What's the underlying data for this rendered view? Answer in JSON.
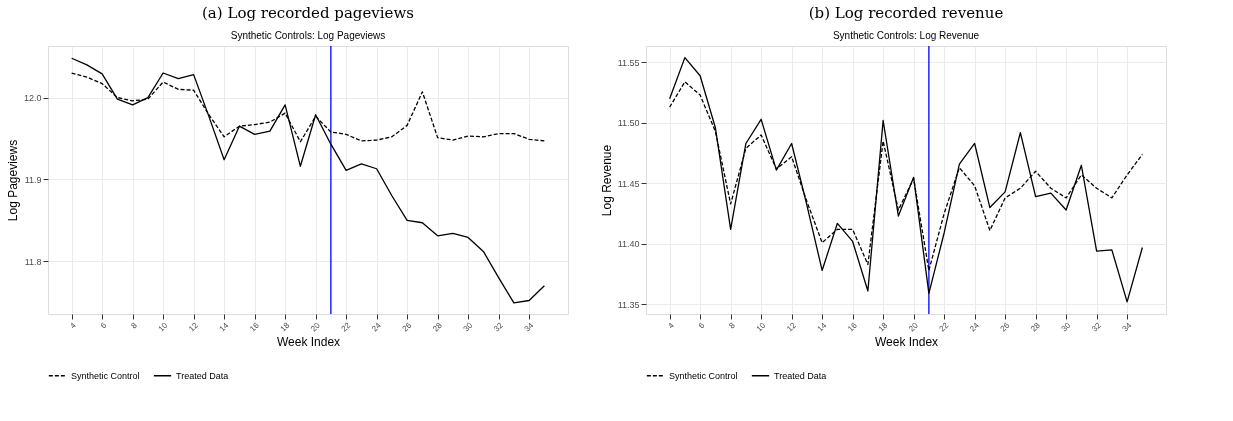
{
  "chart_data": [
    {
      "type": "line",
      "title": "(a) Log recorded pageviews",
      "subtitle": "Synthetic Controls: Log Pageviews",
      "xlabel": "Week Index",
      "ylabel": "Log Pageviews",
      "x": [
        4,
        5,
        6,
        7,
        8,
        9,
        10,
        11,
        12,
        13,
        14,
        15,
        16,
        17,
        18,
        19,
        20,
        21,
        22,
        23,
        24,
        25,
        26,
        27,
        28,
        29,
        30,
        31,
        32,
        33,
        34,
        35
      ],
      "series": [
        {
          "name": "Synthetic Control",
          "color": "#000000",
          "line_style": "dashed",
          "values": [
            12.03,
            12.025,
            12.017,
            12.0,
            11.996,
            11.998,
            12.019,
            12.01,
            12.009,
            11.979,
            11.952,
            11.965,
            11.967,
            11.97,
            11.981,
            11.946,
            11.977,
            11.958,
            11.955,
            11.947,
            11.948,
            11.952,
            11.966,
            12.007,
            11.951,
            11.948,
            11.953,
            11.952,
            11.956,
            11.956,
            11.949,
            11.947
          ]
        },
        {
          "name": "Treated Data",
          "color": "#000000",
          "line_style": "solid",
          "values": [
            12.048,
            12.04,
            12.029,
            11.998,
            11.991,
            12.0,
            12.03,
            12.023,
            12.028,
            11.977,
            11.924,
            11.965,
            11.955,
            11.959,
            11.991,
            11.916,
            11.979,
            11.943,
            11.911,
            11.919,
            11.913,
            11.88,
            11.85,
            11.847,
            11.831,
            11.834,
            11.829,
            11.812,
            11.78,
            11.749,
            11.752,
            11.77
          ]
        }
      ],
      "xlim": [
        2.45,
        36.55
      ],
      "xticks": [
        4,
        6,
        8,
        10,
        12,
        14,
        16,
        18,
        20,
        22,
        24,
        26,
        28,
        30,
        32,
        34
      ],
      "ylim": [
        11.7355,
        12.063
      ],
      "yticks": [
        11.8,
        11.9,
        {
          "value": 12.0,
          "label": "12.0"
        }
      ],
      "ref_lines": [
        {
          "axis": "x",
          "value": 21,
          "color": "#0000ff"
        }
      ],
      "grid": true,
      "legend": "bottom",
      "marker": "none"
    },
    {
      "type": "line",
      "title": "(b) Log recorded revenue",
      "subtitle": "Synthetic Controls: Log Revenue",
      "xlabel": "Week Index",
      "ylabel": "Log Revenue",
      "x": [
        4,
        5,
        6,
        7,
        8,
        9,
        10,
        11,
        12,
        13,
        14,
        15,
        16,
        17,
        18,
        19,
        20,
        21,
        22,
        23,
        24,
        25,
        26,
        27,
        28,
        29,
        30,
        31,
        32,
        33,
        34,
        35
      ],
      "series": [
        {
          "name": "Synthetic Control",
          "color": "#000000",
          "line_style": "dashed",
          "values": [
            11.513,
            11.534,
            11.523,
            11.493,
            11.433,
            11.479,
            11.49,
            11.462,
            11.472,
            11.435,
            11.401,
            11.412,
            11.412,
            11.383,
            11.485,
            11.428,
            11.454,
            11.378,
            11.425,
            11.463,
            11.448,
            11.411,
            11.438,
            11.446,
            11.46,
            11.446,
            11.438,
            11.457,
            11.446,
            11.438,
            11.457,
            11.474
          ]
        },
        {
          "name": "Treated Data",
          "color": "#000000",
          "line_style": "solid",
          "values": [
            11.52,
            11.554,
            11.539,
            11.496,
            11.412,
            11.483,
            11.503,
            11.461,
            11.483,
            11.432,
            11.378,
            11.417,
            11.402,
            11.361,
            11.502,
            11.423,
            11.455,
            11.359,
            11.409,
            11.466,
            11.483,
            11.43,
            11.443,
            11.492,
            11.439,
            11.442,
            11.428,
            11.465,
            11.394,
            11.395,
            11.352,
            11.397
          ]
        }
      ],
      "xlim": [
        2.45,
        36.55
      ],
      "xticks": [
        4,
        6,
        8,
        10,
        12,
        14,
        16,
        18,
        20,
        22,
        24,
        26,
        28,
        30,
        32,
        34
      ],
      "ylim": [
        11.342,
        11.5636
      ],
      "yticks": [
        11.35,
        {
          "value": 11.4,
          "label": "11.40"
        },
        {
          "value": 11.5,
          "label": "11.50"
        },
        11.45,
        11.55
      ],
      "ref_lines": [
        {
          "axis": "x",
          "value": 21,
          "color": "#0000ff"
        }
      ],
      "grid": true,
      "legend": "bottom",
      "marker": "none"
    }
  ]
}
